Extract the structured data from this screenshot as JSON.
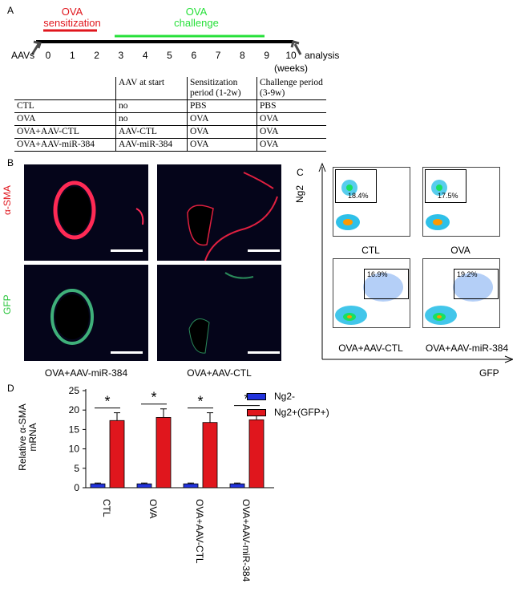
{
  "panelA": {
    "letter": "A",
    "sensitization": [
      "OVA",
      "sensitization"
    ],
    "challenge": [
      "OVA",
      "challenge"
    ],
    "aavs_label": "AAVs",
    "analysis_label": "analysis",
    "weeks_label": "(weeks)",
    "timeline_ticks": [
      "0",
      "1",
      "2",
      "3",
      "4",
      "5",
      "6",
      "7",
      "8",
      "9",
      "10"
    ],
    "colors": {
      "sensitization": "#e0161d",
      "challenge": "#27e03a",
      "arrow": "#4a4a4a"
    },
    "table": {
      "headers": [
        "",
        "AAV at start",
        "Sensitization period (1-2w)",
        "Challenge period (3-9w)"
      ],
      "rows": [
        [
          "CTL",
          "no",
          "PBS",
          "PBS"
        ],
        [
          "OVA",
          "no",
          "OVA",
          "OVA"
        ],
        [
          "OVA+AAV-CTL",
          "AAV-CTL",
          "OVA",
          "OVA"
        ],
        [
          "OVA+AAV-miR-384",
          "AAV-miR-384",
          "OVA",
          "OVA"
        ]
      ]
    }
  },
  "panelB": {
    "letter": "B",
    "row_labels": [
      "α-SMA",
      "GFP"
    ],
    "row_label_colors": [
      "#e0161d",
      "#27c43a"
    ],
    "column_labels": [
      "OVA+AAV-miR-384",
      "OVA+AAV-CTL"
    ]
  },
  "panelC": {
    "letter": "C",
    "y_axis": "Ng2",
    "x_axis": "GFP",
    "plots": [
      {
        "label": "CTL",
        "gate_pct": "18.4%"
      },
      {
        "label": "OVA",
        "gate_pct": "17.5%"
      },
      {
        "label": "OVA+AAV-CTL",
        "gate_pct": "16.9%"
      },
      {
        "label": "OVA+AAV-miR-384",
        "gate_pct": "19.2%"
      }
    ]
  },
  "chart_data": {
    "type": "bar",
    "panel_letter": "D",
    "categories": [
      "CTL",
      "OVA",
      "OVA+AAV-CTL",
      "OVA+AAV-miR-384"
    ],
    "series": [
      {
        "name": "Ng2-",
        "color": "#2233dd",
        "values": [
          1,
          1,
          1,
          1
        ],
        "errors": [
          0.2,
          0.2,
          0.2,
          0.2
        ]
      },
      {
        "name": "Ng2+(GFP+)",
        "color": "#e0161d",
        "values": [
          17.3,
          18.1,
          16.8,
          17.5
        ],
        "errors": [
          2.0,
          2.2,
          2.5,
          2.4
        ]
      }
    ],
    "ylabel": "Relative α-SMA mRNA",
    "yticks": [
      "0",
      "5",
      "10",
      "15",
      "20",
      "25"
    ],
    "ylim": [
      0,
      25
    ],
    "significance": [
      "*",
      "*",
      "*",
      "*"
    ],
    "legend_position": "top-right"
  }
}
